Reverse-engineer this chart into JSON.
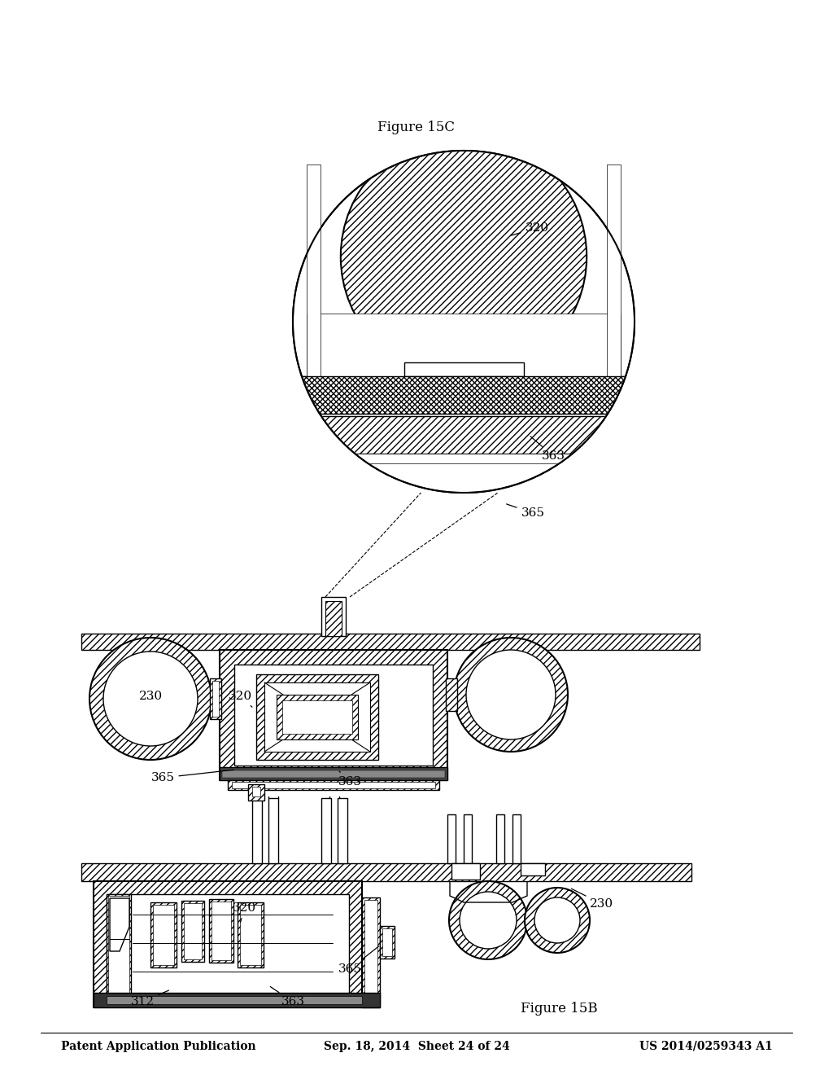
{
  "header_left": "Patent Application Publication",
  "header_center": "Sep. 18, 2014  Sheet 24 of 24",
  "header_right": "US 2014/0259343 A1",
  "figure_label_top": "Figure 15B",
  "figure_label_bottom": "Figure 15C",
  "bg_color": "#ffffff",
  "line_color": "#000000"
}
